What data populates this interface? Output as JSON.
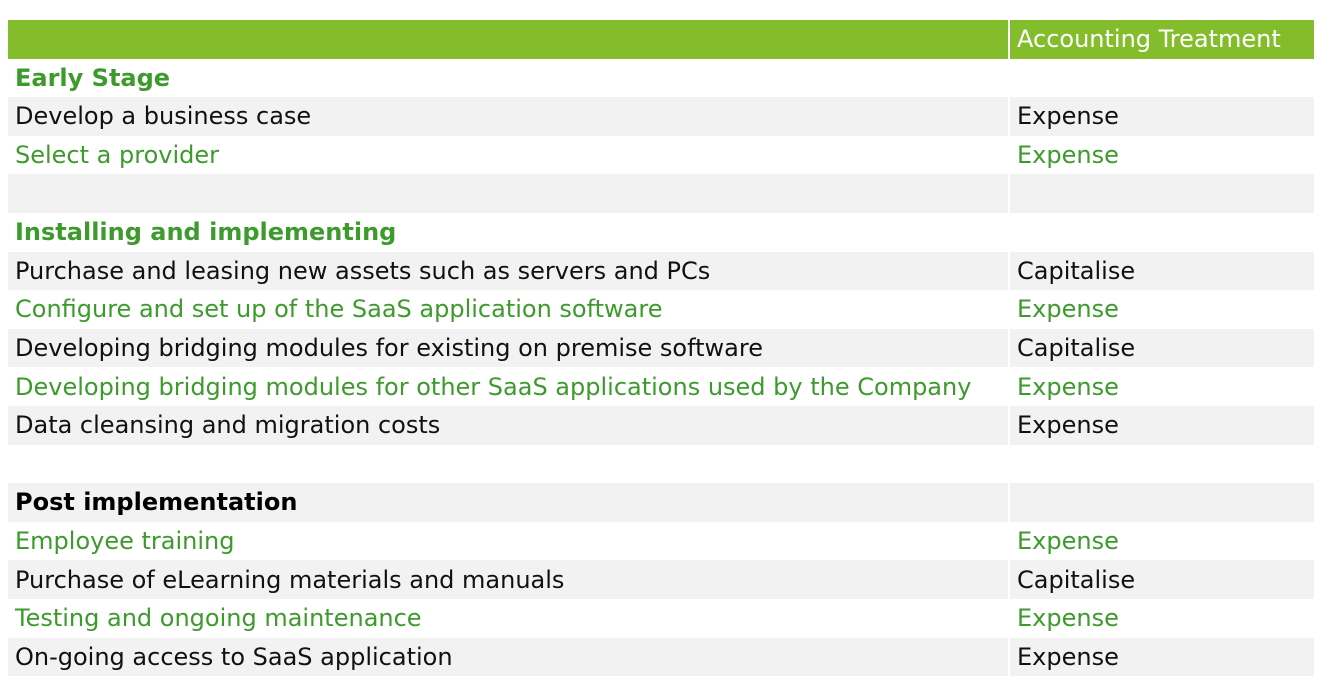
{
  "header": {
    "col1": "",
    "col2": "Accounting Treatment"
  },
  "rows": [
    {
      "label": "Early Stage",
      "treatment": "",
      "kind": "section",
      "color": "green",
      "shade": false
    },
    {
      "label": "Develop a business case",
      "treatment": "Expense",
      "kind": "item",
      "color": "black",
      "shade": true
    },
    {
      "label": "Select a provider",
      "treatment": "Expense",
      "kind": "item",
      "color": "green",
      "shade": false
    },
    {
      "label": "",
      "treatment": "",
      "kind": "blank",
      "color": "black",
      "shade": true
    },
    {
      "label": "Installing and implementing",
      "treatment": "",
      "kind": "section",
      "color": "green",
      "shade": false
    },
    {
      "label": "Purchase and leasing new assets such as servers and PCs",
      "treatment": "Capitalise",
      "kind": "item",
      "color": "black",
      "shade": true
    },
    {
      "label": "Configure and set up of the SaaS application software",
      "treatment": "Expense",
      "kind": "item",
      "color": "green",
      "shade": false
    },
    {
      "label": "Developing bridging modules for existing on premise software",
      "treatment": "Capitalise",
      "kind": "item",
      "color": "black",
      "shade": true
    },
    {
      "label": "Developing bridging modules for other SaaS applications used by the Company",
      "treatment": "Expense",
      "kind": "item",
      "color": "green",
      "shade": false
    },
    {
      "label": "Data cleansing and migration costs",
      "treatment": "Expense",
      "kind": "item",
      "color": "black",
      "shade": true
    },
    {
      "label": "",
      "treatment": "",
      "kind": "blank",
      "color": "black",
      "shade": false
    },
    {
      "label": "Post implementation",
      "treatment": "",
      "kind": "section",
      "color": "black",
      "shade": true
    },
    {
      "label": "Employee training",
      "treatment": "Expense",
      "kind": "item",
      "color": "green",
      "shade": false
    },
    {
      "label": "Purchase of eLearning materials and manuals",
      "treatment": "Capitalise",
      "kind": "item",
      "color": "black",
      "shade": true
    },
    {
      "label": "Testing and ongoing maintenance",
      "treatment": "Expense",
      "kind": "item",
      "color": "green",
      "shade": false
    },
    {
      "label": "On-going access to SaaS application",
      "treatment": "Expense",
      "kind": "item",
      "color": "black",
      "shade": true
    }
  ],
  "colors": {
    "header_bg": "#84bd2b",
    "green_text": "#3d9a2c",
    "shade_bg": "#f2f2f2"
  }
}
